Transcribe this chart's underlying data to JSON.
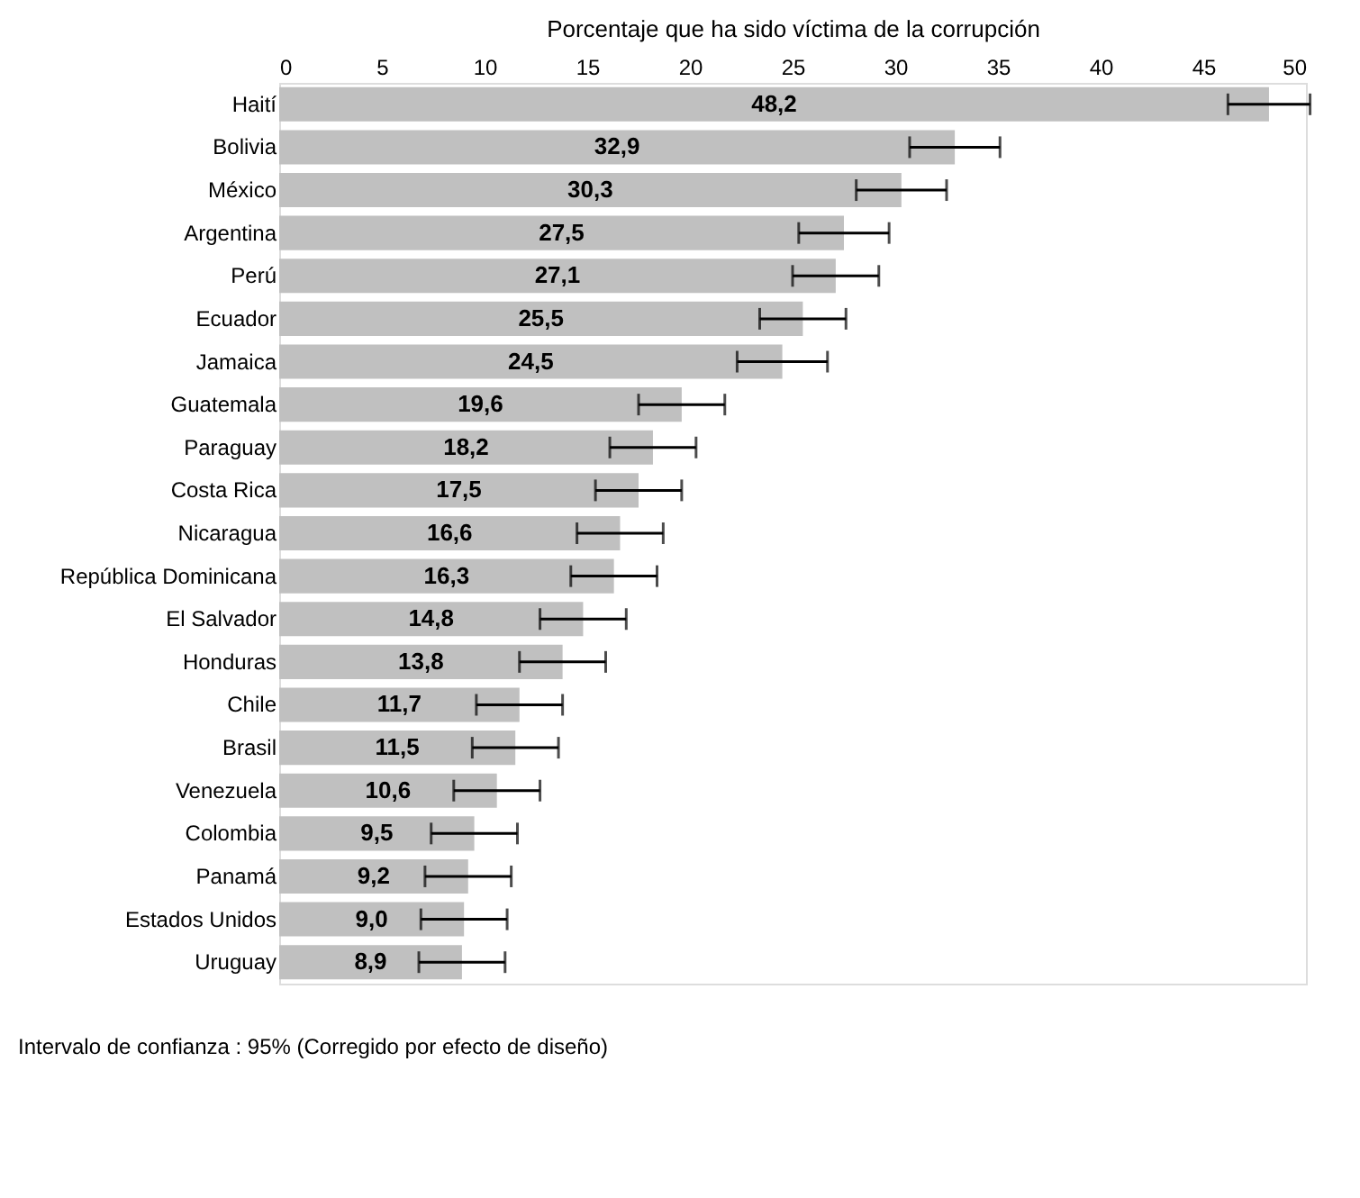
{
  "chart_data": {
    "type": "bar",
    "orientation": "horizontal",
    "xlabel": "Porcentaje que ha sido víctima de la corrupción",
    "categories": [
      "Haití",
      "Bolivia",
      "México",
      "Argentina",
      "Perú",
      "Ecuador",
      "Jamaica",
      "Guatemala",
      "Paraguay",
      "Costa Rica",
      "Nicaragua",
      "República Dominicana",
      "El Salvador",
      "Honduras",
      "Chile",
      "Brasil",
      "Venezuela",
      "Colombia",
      "Panamá",
      "Estados Unidos",
      "Uruguay"
    ],
    "values": [
      48.2,
      32.9,
      30.3,
      27.5,
      27.1,
      25.5,
      24.5,
      19.6,
      18.2,
      17.5,
      16.6,
      16.3,
      14.8,
      13.8,
      11.7,
      11.5,
      10.6,
      9.5,
      9.2,
      9.0,
      8.9
    ],
    "errors": [
      2.0,
      2.2,
      2.2,
      2.2,
      2.1,
      2.1,
      2.2,
      2.1,
      2.1,
      2.1,
      2.1,
      2.1,
      2.1,
      2.1,
      2.1,
      2.1,
      2.1,
      2.1,
      2.1,
      2.1,
      2.1
    ],
    "value_labels": [
      "48,2",
      "32,9",
      "30,3",
      "27,5",
      "27,1",
      "25,5",
      "24,5",
      "19,6",
      "18,2",
      "17,5",
      "16,6",
      "16,3",
      "14,8",
      "13,8",
      "11,7",
      "11,5",
      "10,6",
      "9,5",
      "9,2",
      "9,0",
      "8,9"
    ],
    "color": "#c0c0c0",
    "xlim": [
      0,
      50
    ],
    "xticks": [
      0,
      5,
      10,
      15,
      20,
      25,
      30,
      35,
      40,
      45,
      50
    ],
    "grid": false,
    "annotations": [
      "Intervalo de confianza : 95% (Corregido por efecto de diseño)"
    ]
  }
}
